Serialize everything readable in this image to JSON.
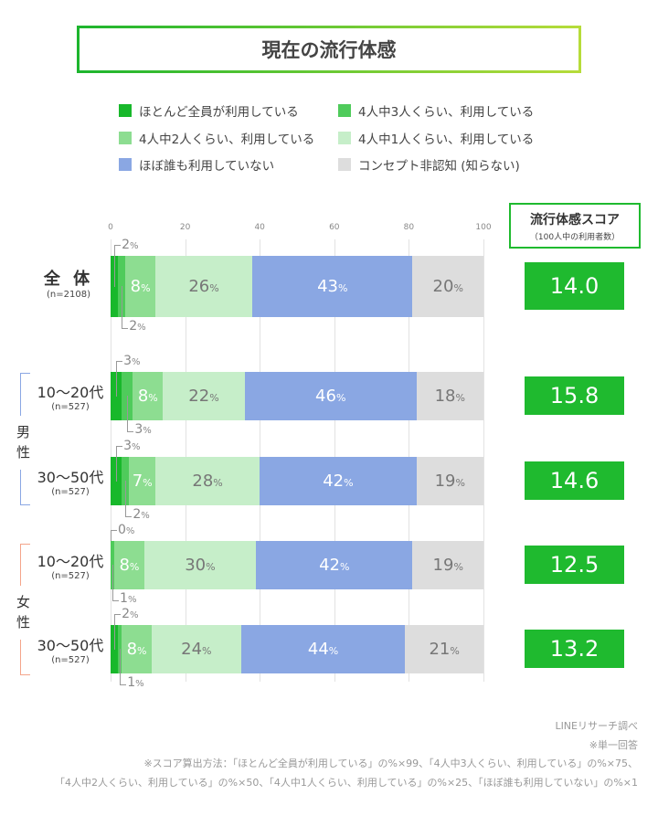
{
  "title": "現在の流行体感",
  "legend": [
    {
      "label": "ほとんど全員が利用している",
      "color": "#18b82b"
    },
    {
      "label": "4人中3人くらい、利用している",
      "color": "#4fcb5b"
    },
    {
      "label": "4人中2人くらい、利用している",
      "color": "#8ddd91"
    },
    {
      "label": "4人中1人くらい、利用している",
      "color": "#c6eec9"
    },
    {
      "label": "ほぼ誰も利用していない",
      "color": "#8aa7e3"
    },
    {
      "label": "コンセプト非認知 (知らない)",
      "color": "#dddddd"
    }
  ],
  "score_header": {
    "title": "流行体感スコア",
    "subtitle": "（100人中の利用者数）"
  },
  "groups": [
    {
      "label": "男性",
      "color": "#8aa7e3"
    },
    {
      "label": "女性",
      "color": "#f4a58a"
    }
  ],
  "chart_data": {
    "type": "bar",
    "orientation": "horizontal-stacked",
    "xlim": [
      0,
      100
    ],
    "x_ticks": [
      "0",
      "20",
      "40",
      "60",
      "80",
      "100"
    ],
    "grid": true,
    "legend_placement": "top",
    "series_names": [
      "ほとんど全員が利用している",
      "4人中3人くらい、利用している",
      "4人中2人くらい、利用している",
      "4人中1人くらい、利用している",
      "ほぼ誰も利用していない",
      "コンセプト非認知 (知らない)"
    ],
    "rows": [
      {
        "label": "全 体",
        "n": "(n=2108)",
        "values": [
          2,
          2,
          8,
          26,
          43,
          20
        ],
        "score": "14.0"
      },
      {
        "label": "10〜20代",
        "n": "(n=527)",
        "group": "男性",
        "values": [
          3,
          3,
          8,
          22,
          46,
          18
        ],
        "score": "15.8"
      },
      {
        "label": "30〜50代",
        "n": "(n=527)",
        "group": "男性",
        "values": [
          3,
          2,
          7,
          28,
          42,
          19
        ],
        "score": "14.6"
      },
      {
        "label": "10〜20代",
        "n": "(n=527)",
        "group": "女性",
        "values": [
          0,
          1,
          8,
          30,
          42,
          19
        ],
        "score": "12.5"
      },
      {
        "label": "30〜50代",
        "n": "(n=527)",
        "group": "女性",
        "values": [
          2,
          1,
          8,
          24,
          44,
          21
        ],
        "score": "13.2"
      }
    ]
  },
  "notes": [
    "LINEリサーチ調べ",
    "※単一回答",
    "※スコア算出方法：「ほとんど全員が利用している」の%×99、「4人中3人くらい、利用している」の%×75、",
    "「4人中2人くらい、利用している」の%×50、「4人中1人くらい、利用している」の%×25、「ほぼ誰も利用していない」の%×1"
  ]
}
